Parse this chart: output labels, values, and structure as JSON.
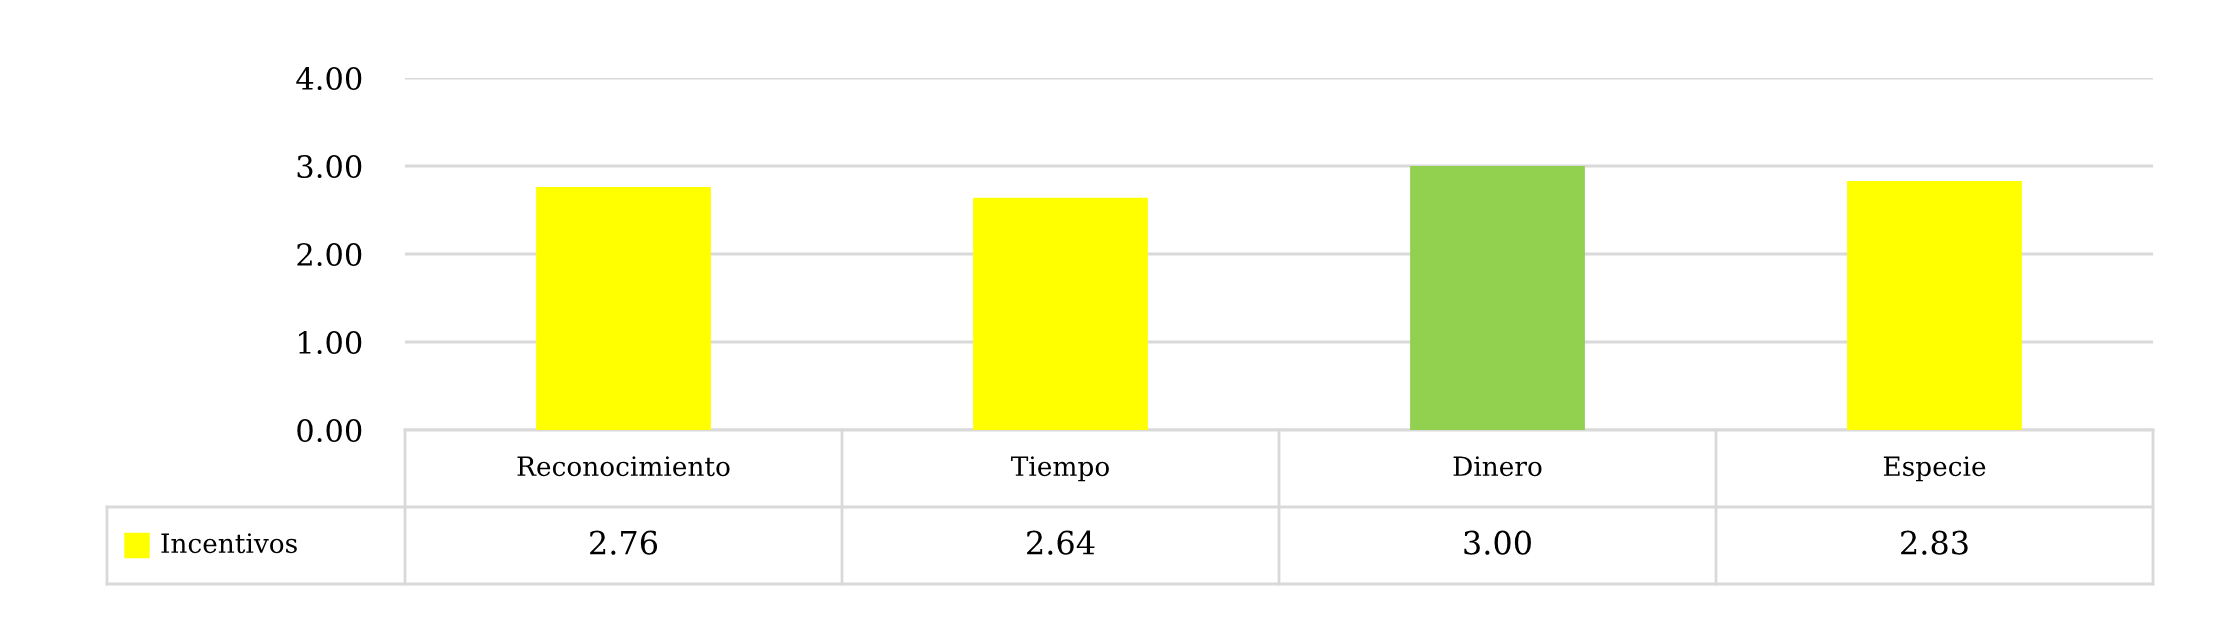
{
  "chart_data": {
    "type": "bar",
    "categories": [
      "Reconocimiento",
      "Tiempo",
      "Dinero",
      "Especie"
    ],
    "series": [
      {
        "name": "Incentivos",
        "color": "#ffff00",
        "colors": [
          "#ffff00",
          "#ffff00",
          "#92d050",
          "#ffff00"
        ],
        "values": [
          2.76,
          2.64,
          3.0,
          2.83
        ],
        "value_labels": [
          "2.76",
          "2.64",
          "3.00",
          "2.83"
        ]
      }
    ],
    "ylim": [
      0,
      4
    ],
    "yticks": [
      {
        "value": 0,
        "label": "0.00"
      },
      {
        "value": 1,
        "label": "1.00"
      },
      {
        "value": 2,
        "label": "2.00"
      },
      {
        "value": 3,
        "label": "3.00"
      },
      {
        "value": 4,
        "label": "4.00"
      }
    ],
    "grid": "y",
    "legend": "bottom"
  }
}
